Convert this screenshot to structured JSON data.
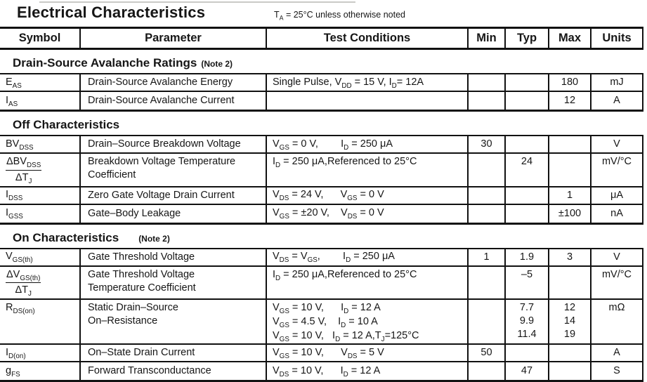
{
  "title": "Electrical Characteristics",
  "subtitle": "T~A~ = 25°C unless otherwise noted",
  "header": {
    "symbol": "Symbol",
    "parameter": "Parameter",
    "test_conditions": "Test Conditions",
    "min": "Min",
    "typ": "Typ",
    "max": "Max",
    "units": "Units"
  },
  "sections": [
    {
      "heading": "Drain-Source Avalanche Ratings",
      "note": "(Note 2)",
      "rows": [
        {
          "sym": "E~AS~",
          "param": "Drain-Source Avalanche Energy",
          "cond": "Single Pulse, V~DD~ = 15 V, I~D~= 12A",
          "min": "",
          "typ": "",
          "max": "180",
          "units": "mJ"
        },
        {
          "sym": "I~AS~",
          "param": "Drain-Source Avalanche Current",
          "cond": "",
          "min": "",
          "typ": "",
          "max": "12",
          "units": "A"
        }
      ]
    },
    {
      "heading": "Off Characteristics",
      "note": "",
      "rows": [
        {
          "sym": "BV~DSS~",
          "param": "Drain–Source Breakdown Voltage",
          "cond": "V~GS~ = 0 V,        I~D~ = 250 μA",
          "min": "30",
          "typ": "",
          "max": "",
          "units": "V"
        },
        {
          "sym_num": "ΔBV~DSS~",
          "sym_den": "ΔT~J~",
          "param": "Breakdown Voltage Temperature\nCoefficient",
          "cond": "I~D~ = 250 μA,Referenced to 25°C",
          "min": "",
          "typ": "24",
          "max": "",
          "units": "mV/°C"
        },
        {
          "sym": "I~DSS~",
          "param": "Zero Gate Voltage Drain Current",
          "cond": "V~DS~ = 24 V,      V~GS~ = 0 V",
          "min": "",
          "typ": "",
          "max": "1",
          "units": "μA"
        },
        {
          "sym": "I~GSS~",
          "param": "Gate–Body Leakage",
          "cond": "V~GS~ = ±20 V,    V~DS~ = 0 V",
          "min": "",
          "typ": "",
          "max": "±100",
          "units": "nA"
        }
      ]
    },
    {
      "heading": "On Characteristics",
      "note": "(Note 2)",
      "rows": [
        {
          "sym": "V~GS(th)~",
          "param": "Gate Threshold Voltage",
          "cond": "V~DS~ = V~GS~,        I~D~ = 250 μA",
          "min": "1",
          "typ": "1.9",
          "max": "3",
          "units": "V"
        },
        {
          "sym_num": "ΔV~GS(th)~",
          "sym_den": "ΔT~J~",
          "param": "Gate Threshold Voltage\nTemperature Coefficient",
          "cond": "I~D~ = 250 μA,Referenced to 25°C",
          "min": "",
          "typ": "–5",
          "max": "",
          "units": "mV/°C"
        },
        {
          "sym": "R~DS(on)~",
          "param": "Static Drain–Source\nOn–Resistance",
          "cond": "V~GS~ = 10 V,      I~D~ = 12 A\nV~GS~ = 4.5 V,    I~D~ = 10 A\nV~GS~ = 10 V,   I~D~ = 12 A,T~J~=125°C",
          "min": "",
          "typ": "7.7\n9.9\n11.4",
          "max": "12\n14\n19",
          "units": "mΩ"
        },
        {
          "sym": "I~D(on)~",
          "param": "On–State Drain Current",
          "cond": "V~GS~ = 10 V,      V~DS~ = 5 V",
          "min": "50",
          "typ": "",
          "max": "",
          "units": "A"
        },
        {
          "sym": "g~FS~",
          "param": "Forward Transconductance",
          "cond": "V~DS~ = 10 V,      I~D~ = 12 A",
          "min": "",
          "typ": "47",
          "max": "",
          "units": "S"
        }
      ]
    }
  ]
}
